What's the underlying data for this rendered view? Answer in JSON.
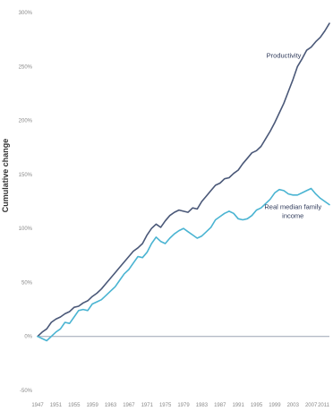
{
  "chart_data": {
    "type": "line",
    "ylabel": "Cumulative change",
    "ylim": [
      -50,
      300
    ],
    "y_ticks": [
      -50,
      0,
      50,
      100,
      150,
      200,
      250,
      300
    ],
    "y_tick_labels": [
      "-50%",
      "0%",
      "50%",
      "100%",
      "150%",
      "200%",
      "250%",
      "300%"
    ],
    "x_ticks": [
      1947,
      1951,
      1955,
      1959,
      1963,
      1967,
      1971,
      1975,
      1979,
      1983,
      1987,
      1991,
      1995,
      1999,
      2003,
      2007,
      2011
    ],
    "x_tick_labels": [
      "1947",
      "1951",
      "1955",
      "1959",
      "1963",
      "1967",
      "1971",
      "1975",
      "1979",
      "1983",
      "1987",
      "1991",
      "1995",
      "1999",
      "2003",
      "2007",
      "2011"
    ],
    "xlim": [
      1947,
      2011
    ],
    "grid": false,
    "series": [
      {
        "name": "Productivity",
        "color": "#4a5878",
        "label_lines": [
          "Productivity"
        ],
        "x": [
          1947,
          1948,
          1949,
          1950,
          1951,
          1952,
          1953,
          1954,
          1955,
          1956,
          1957,
          1958,
          1959,
          1960,
          1961,
          1962,
          1963,
          1964,
          1965,
          1966,
          1967,
          1968,
          1969,
          1970,
          1971,
          1972,
          1973,
          1974,
          1975,
          1976,
          1977,
          1978,
          1979,
          1980,
          1981,
          1982,
          1983,
          1984,
          1985,
          1986,
          1987,
          1988,
          1989,
          1990,
          1991,
          1992,
          1993,
          1994,
          1995,
          1996,
          1997,
          1998,
          1999,
          2000,
          2001,
          2002,
          2003,
          2004,
          2005,
          2006,
          2007,
          2008,
          2009,
          2010,
          2011
        ],
        "values": [
          0,
          4,
          7,
          13,
          16,
          18,
          21,
          23,
          27,
          28,
          31,
          33,
          37,
          40,
          44,
          49,
          54,
          59,
          64,
          69,
          74,
          79,
          82,
          86,
          94,
          100,
          104,
          101,
          107,
          112,
          115,
          117,
          116,
          115,
          119,
          118,
          125,
          130,
          135,
          140,
          142,
          146,
          147,
          151,
          154,
          160,
          165,
          170,
          172,
          176,
          183,
          190,
          198,
          207,
          216,
          227,
          238,
          250,
          257,
          265,
          268,
          273,
          277,
          283,
          290
        ],
        "label_anchor": [
          2001,
          258
        ]
      },
      {
        "name": "Real median family income",
        "color": "#4ab4d2",
        "label_lines": [
          "Real median family",
          "income"
        ],
        "x": [
          1947,
          1948,
          1949,
          1950,
          1951,
          1952,
          1953,
          1954,
          1955,
          1956,
          1957,
          1958,
          1959,
          1960,
          1961,
          1962,
          1963,
          1964,
          1965,
          1966,
          1967,
          1968,
          1969,
          1970,
          1971,
          1972,
          1973,
          1974,
          1975,
          1976,
          1977,
          1978,
          1979,
          1980,
          1981,
          1982,
          1983,
          1984,
          1985,
          1986,
          1987,
          1988,
          1989,
          1990,
          1991,
          1992,
          1993,
          1994,
          1995,
          1996,
          1997,
          1998,
          1999,
          2000,
          2001,
          2002,
          2003,
          2004,
          2005,
          2006,
          2007,
          2008,
          2009,
          2010,
          2011
        ],
        "values": [
          0,
          -2,
          -4,
          0,
          4,
          7,
          13,
          12,
          18,
          24,
          25,
          24,
          30,
          32,
          34,
          38,
          42,
          46,
          52,
          58,
          62,
          68,
          74,
          73,
          78,
          86,
          92,
          88,
          86,
          91,
          95,
          98,
          100,
          97,
          94,
          91,
          93,
          97,
          101,
          108,
          111,
          114,
          116,
          114,
          109,
          108,
          109,
          112,
          117,
          119,
          123,
          127,
          133,
          136,
          135,
          132,
          131,
          131,
          133,
          135,
          137,
          132,
          128,
          125,
          122
        ],
        "label_anchor": [
          2003,
          118
        ]
      }
    ],
    "zero_line": 0
  }
}
